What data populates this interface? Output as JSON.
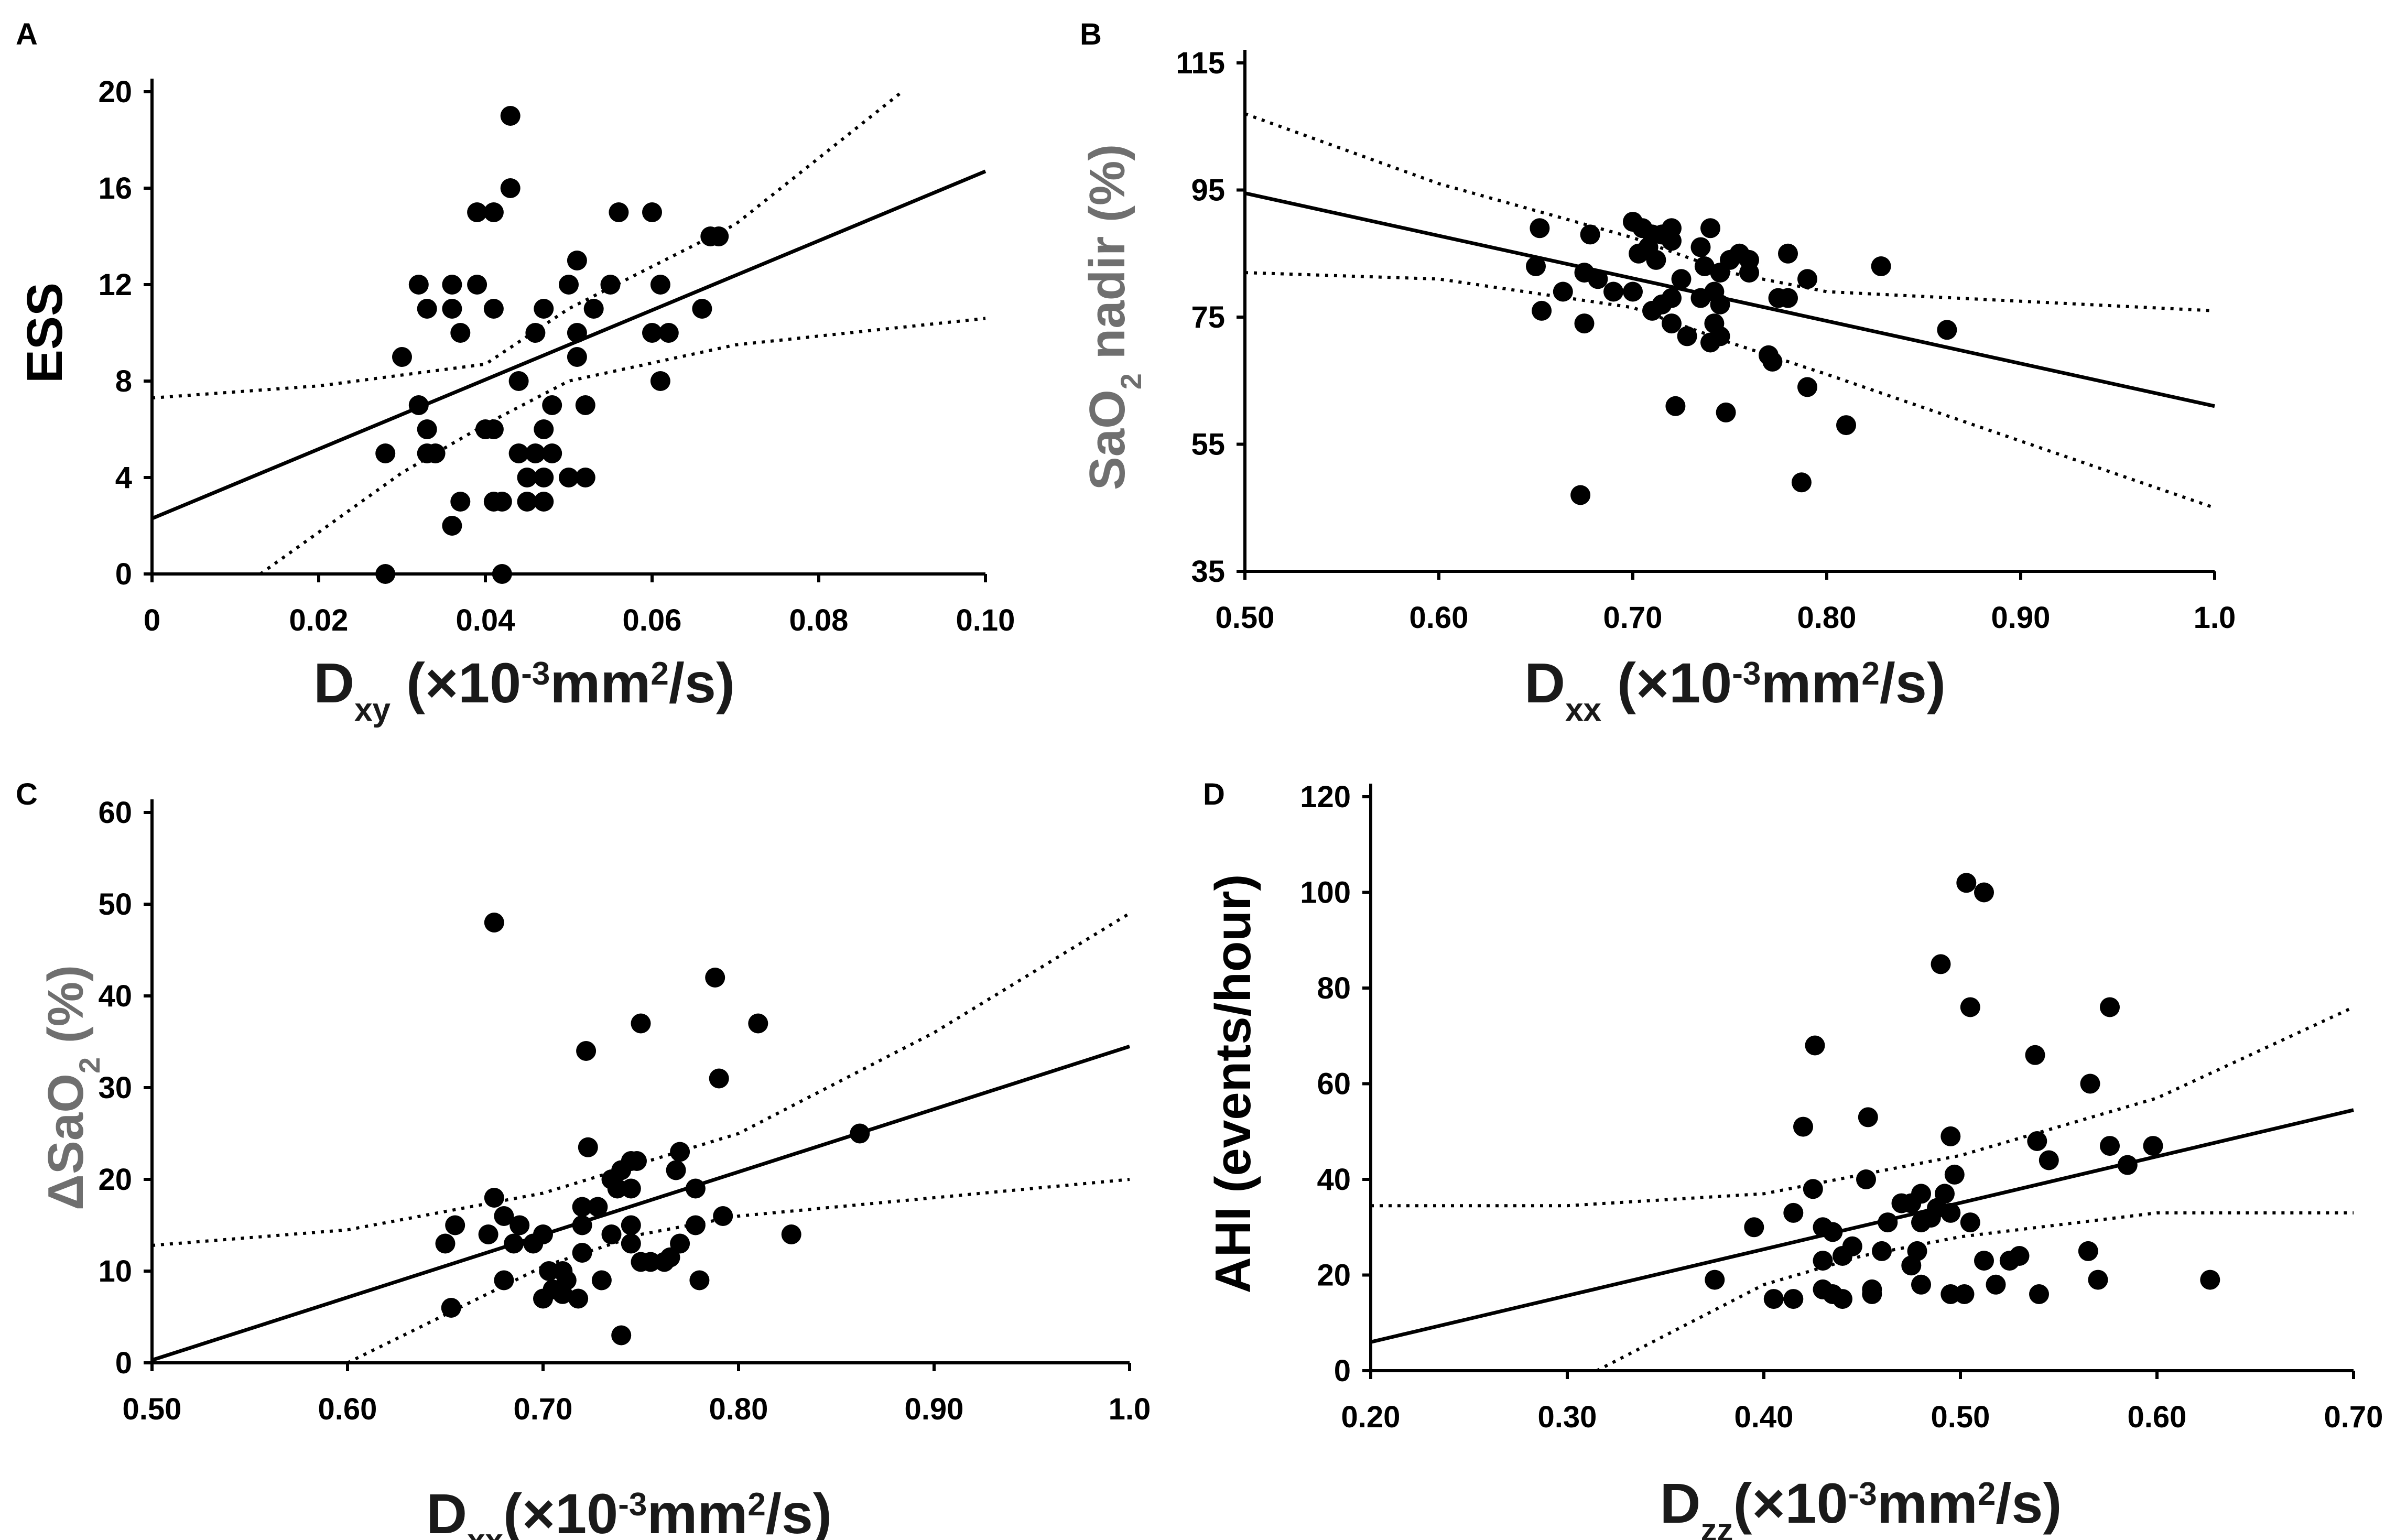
{
  "chart_data": [
    {
      "panel": "A",
      "type": "scatter",
      "ylabel": "ESS",
      "xlabel": {
        "base": "D",
        "sub": "xy",
        "rest": " (×10",
        "exp": "-3",
        "unit": "mm",
        "unitExp": "2",
        "tail": "/s)"
      },
      "xlim": [
        0,
        0.1
      ],
      "ylim": [
        0,
        20
      ],
      "xticks": [
        0,
        0.02,
        0.04,
        0.06,
        0.08,
        0.1
      ],
      "xtickLabels": [
        "0",
        "0.02",
        "0.04",
        "0.06",
        "0.08",
        "0.10"
      ],
      "yticks": [
        0,
        4,
        8,
        12,
        16,
        20
      ],
      "ytickLabels": [
        "0",
        "4",
        "8",
        "12",
        "16",
        "20"
      ],
      "fit": [
        [
          0,
          2.3
        ],
        [
          0.1,
          16.7
        ]
      ],
      "ci_upper": [
        [
          0,
          7.3
        ],
        [
          0.02,
          7.8
        ],
        [
          0.04,
          8.7
        ],
        [
          0.05,
          11.0
        ],
        [
          0.07,
          14.5
        ],
        [
          0.09,
          20.0
        ]
      ],
      "ci_lower": [
        [
          0.013,
          0
        ],
        [
          0.03,
          4.2
        ],
        [
          0.04,
          6.2
        ],
        [
          0.05,
          8.0
        ],
        [
          0.07,
          9.5
        ],
        [
          0.1,
          10.6
        ]
      ],
      "points": [
        [
          0.043,
          19
        ],
        [
          0.043,
          16
        ],
        [
          0.039,
          15
        ],
        [
          0.041,
          15
        ],
        [
          0.056,
          15
        ],
        [
          0.06,
          15
        ],
        [
          0.051,
          13
        ],
        [
          0.067,
          14
        ],
        [
          0.068,
          14
        ],
        [
          0.032,
          12
        ],
        [
          0.036,
          12
        ],
        [
          0.039,
          12
        ],
        [
          0.05,
          12
        ],
        [
          0.055,
          12
        ],
        [
          0.061,
          12
        ],
        [
          0.033,
          11
        ],
        [
          0.036,
          11
        ],
        [
          0.041,
          11
        ],
        [
          0.047,
          11
        ],
        [
          0.053,
          11
        ],
        [
          0.066,
          11
        ],
        [
          0.037,
          10
        ],
        [
          0.046,
          10
        ],
        [
          0.051,
          10
        ],
        [
          0.06,
          10
        ],
        [
          0.062,
          10
        ],
        [
          0.03,
          9
        ],
        [
          0.051,
          9
        ],
        [
          0.044,
          8
        ],
        [
          0.061,
          8
        ],
        [
          0.032,
          7
        ],
        [
          0.048,
          7
        ],
        [
          0.052,
          7
        ],
        [
          0.033,
          6
        ],
        [
          0.04,
          6
        ],
        [
          0.041,
          6
        ],
        [
          0.047,
          6
        ],
        [
          0.028,
          5
        ],
        [
          0.033,
          5
        ],
        [
          0.034,
          5
        ],
        [
          0.044,
          5
        ],
        [
          0.046,
          5
        ],
        [
          0.048,
          5
        ],
        [
          0.045,
          4
        ],
        [
          0.047,
          4
        ],
        [
          0.05,
          4
        ],
        [
          0.052,
          4
        ],
        [
          0.037,
          3
        ],
        [
          0.041,
          3
        ],
        [
          0.042,
          3
        ],
        [
          0.045,
          3
        ],
        [
          0.047,
          3
        ],
        [
          0.036,
          2
        ],
        [
          0.028,
          0
        ],
        [
          0.042,
          0
        ]
      ]
    },
    {
      "panel": "B",
      "type": "scatter",
      "ylabel": {
        "base": "SaO",
        "sub": "2",
        "tail": " nadir (%)"
      },
      "xlabel": {
        "base": "D",
        "sub": "xx",
        "rest": " (×10",
        "exp": "-3",
        "unit": "mm",
        "unitExp": "2",
        "tail": "/s)"
      },
      "xlim": [
        0.5,
        1.0
      ],
      "ylim": [
        35,
        115
      ],
      "xticks": [
        0.5,
        0.6,
        0.7,
        0.8,
        0.9,
        1.0
      ],
      "xtickLabels": [
        "0.50",
        "0.60",
        "0.70",
        "0.80",
        "0.90",
        "1.0"
      ],
      "yticks": [
        35,
        55,
        75,
        95,
        115
      ],
      "ytickLabels": [
        "35",
        "55",
        "75",
        "95",
        "115"
      ],
      "fit": [
        [
          0.5,
          94.5
        ],
        [
          1.0,
          61.0
        ]
      ],
      "ci_upper": [
        [
          0.5,
          107
        ],
        [
          0.6,
          96
        ],
        [
          0.7,
          87.5
        ],
        [
          0.75,
          82
        ],
        [
          0.8,
          79
        ],
        [
          1.0,
          76
        ]
      ],
      "ci_lower": [
        [
          0.5,
          82
        ],
        [
          0.6,
          81
        ],
        [
          0.7,
          76.5
        ],
        [
          0.75,
          71
        ],
        [
          0.8,
          66
        ],
        [
          1.0,
          45
        ]
      ],
      "points": [
        [
          0.652,
          89
        ],
        [
          0.7,
          90
        ],
        [
          0.705,
          89
        ],
        [
          0.71,
          88
        ],
        [
          0.715,
          88
        ],
        [
          0.72,
          89
        ],
        [
          0.74,
          89
        ],
        [
          0.678,
          88
        ],
        [
          0.708,
          86
        ],
        [
          0.72,
          87
        ],
        [
          0.735,
          86
        ],
        [
          0.703,
          85
        ],
        [
          0.712,
          84
        ],
        [
          0.75,
          84
        ],
        [
          0.755,
          85
        ],
        [
          0.76,
          84
        ],
        [
          0.78,
          85
        ],
        [
          0.65,
          83
        ],
        [
          0.737,
          83
        ],
        [
          0.745,
          82
        ],
        [
          0.76,
          82
        ],
        [
          0.828,
          83
        ],
        [
          0.675,
          82
        ],
        [
          0.682,
          81
        ],
        [
          0.725,
          81
        ],
        [
          0.79,
          81
        ],
        [
          0.664,
          79
        ],
        [
          0.69,
          79
        ],
        [
          0.7,
          79
        ],
        [
          0.742,
          79
        ],
        [
          0.775,
          78
        ],
        [
          0.78,
          78
        ],
        [
          0.715,
          77
        ],
        [
          0.72,
          78
        ],
        [
          0.735,
          78
        ],
        [
          0.745,
          77
        ],
        [
          0.653,
          76
        ],
        [
          0.71,
          76
        ],
        [
          0.675,
          74
        ],
        [
          0.72,
          74
        ],
        [
          0.742,
          74
        ],
        [
          0.728,
          72
        ],
        [
          0.74,
          71
        ],
        [
          0.745,
          72
        ],
        [
          0.862,
          73
        ],
        [
          0.77,
          69
        ],
        [
          0.772,
          68
        ],
        [
          0.722,
          61
        ],
        [
          0.748,
          60
        ],
        [
          0.81,
          58
        ],
        [
          0.79,
          64
        ],
        [
          0.787,
          49
        ],
        [
          0.673,
          47
        ]
      ]
    },
    {
      "panel": "C",
      "type": "scatter",
      "ylabel": {
        "base": "ΔSaO",
        "sub": "2",
        "tail": " (%)"
      },
      "xlabel": {
        "base": "D",
        "sub": "xx",
        "rest": "(×10",
        "exp": "-3",
        "unit": "mm",
        "unitExp": "2",
        "tail": "/s)"
      },
      "xlim": [
        0.5,
        1.0
      ],
      "ylim": [
        0,
        60
      ],
      "xticks": [
        0.5,
        0.6,
        0.7,
        0.8,
        0.9,
        1.0
      ],
      "xtickLabels": [
        "0.50",
        "0.60",
        "0.70",
        "0.80",
        "0.90",
        "1.0"
      ],
      "yticks": [
        0,
        10,
        20,
        30,
        40,
        50,
        60
      ],
      "ytickLabels": [
        "0",
        "10",
        "20",
        "30",
        "40",
        "50",
        "60"
      ],
      "fit": [
        [
          0.5,
          0.3
        ],
        [
          1.0,
          34.5
        ]
      ],
      "ci_upper": [
        [
          0.5,
          12.8
        ],
        [
          0.6,
          14.5
        ],
        [
          0.7,
          18.5
        ],
        [
          0.8,
          25
        ],
        [
          0.9,
          36
        ],
        [
          1.0,
          49
        ]
      ],
      "ci_lower": [
        [
          0.6,
          0
        ],
        [
          0.7,
          10.5
        ],
        [
          0.75,
          14
        ],
        [
          0.8,
          16
        ],
        [
          0.9,
          18
        ],
        [
          1.0,
          20
        ]
      ],
      "points": [
        [
          0.675,
          48
        ],
        [
          0.788,
          42
        ],
        [
          0.75,
          37
        ],
        [
          0.81,
          37
        ],
        [
          0.722,
          34
        ],
        [
          0.79,
          31
        ],
        [
          0.862,
          25
        ],
        [
          0.723,
          23.5
        ],
        [
          0.77,
          23
        ],
        [
          0.745,
          22
        ],
        [
          0.748,
          22
        ],
        [
          0.74,
          21
        ],
        [
          0.768,
          21
        ],
        [
          0.735,
          20
        ],
        [
          0.738,
          19
        ],
        [
          0.745,
          19
        ],
        [
          0.778,
          19
        ],
        [
          0.675,
          18
        ],
        [
          0.72,
          17
        ],
        [
          0.728,
          17
        ],
        [
          0.68,
          16
        ],
        [
          0.688,
          15
        ],
        [
          0.72,
          15
        ],
        [
          0.745,
          15
        ],
        [
          0.778,
          15
        ],
        [
          0.792,
          16
        ],
        [
          0.655,
          15
        ],
        [
          0.672,
          14
        ],
        [
          0.7,
          14
        ],
        [
          0.735,
          14
        ],
        [
          0.827,
          14
        ],
        [
          0.65,
          13
        ],
        [
          0.685,
          13
        ],
        [
          0.695,
          13
        ],
        [
          0.745,
          13
        ],
        [
          0.77,
          13
        ],
        [
          0.72,
          12
        ],
        [
          0.755,
          11
        ],
        [
          0.762,
          11
        ],
        [
          0.765,
          11.5
        ],
        [
          0.75,
          11
        ],
        [
          0.703,
          10
        ],
        [
          0.71,
          10
        ],
        [
          0.712,
          9
        ],
        [
          0.73,
          9
        ],
        [
          0.78,
          9
        ],
        [
          0.68,
          9
        ],
        [
          0.705,
          8
        ],
        [
          0.71,
          7.5
        ],
        [
          0.718,
          7
        ],
        [
          0.7,
          7
        ],
        [
          0.653,
          6
        ],
        [
          0.74,
          3
        ]
      ]
    },
    {
      "panel": "D",
      "type": "scatter",
      "ylabel": "AHI (events/hour)",
      "xlabel": {
        "base": "D",
        "sub": "zz",
        "rest": "(×10",
        "exp": "-3",
        "unit": "mm",
        "unitExp": "2",
        "tail": "/s)"
      },
      "xlim": [
        0.2,
        0.7
      ],
      "ylim": [
        0,
        120
      ],
      "xticks": [
        0.2,
        0.3,
        0.4,
        0.5,
        0.6,
        0.7
      ],
      "xtickLabels": [
        "0.20",
        "0.30",
        "0.40",
        "0.50",
        "0.60",
        "0.70"
      ],
      "yticks": [
        0,
        20,
        40,
        60,
        80,
        100,
        120
      ],
      "ytickLabels": [
        "0",
        "20",
        "40",
        "60",
        "80",
        "100",
        "120"
      ],
      "fit": [
        [
          0.2,
          6
        ],
        [
          0.7,
          54.5
        ]
      ],
      "ci_upper": [
        [
          0.2,
          34.5
        ],
        [
          0.3,
          34.5
        ],
        [
          0.4,
          37
        ],
        [
          0.5,
          45
        ],
        [
          0.6,
          57
        ],
        [
          0.7,
          76
        ]
      ],
      "ci_lower": [
        [
          0.315,
          0
        ],
        [
          0.4,
          18
        ],
        [
          0.45,
          24
        ],
        [
          0.5,
          28
        ],
        [
          0.6,
          33
        ],
        [
          0.7,
          33
        ]
      ],
      "points": [
        [
          0.503,
          102
        ],
        [
          0.512,
          100
        ],
        [
          0.49,
          85
        ],
        [
          0.505,
          76
        ],
        [
          0.576,
          76
        ],
        [
          0.426,
          68
        ],
        [
          0.538,
          66
        ],
        [
          0.566,
          60
        ],
        [
          0.453,
          53
        ],
        [
          0.42,
          51
        ],
        [
          0.495,
          49
        ],
        [
          0.539,
          48
        ],
        [
          0.576,
          47
        ],
        [
          0.598,
          47
        ],
        [
          0.545,
          44
        ],
        [
          0.585,
          43
        ],
        [
          0.497,
          41
        ],
        [
          0.425,
          38
        ],
        [
          0.452,
          40
        ],
        [
          0.47,
          35
        ],
        [
          0.48,
          37
        ],
        [
          0.492,
          37
        ],
        [
          0.475,
          35
        ],
        [
          0.488,
          34
        ],
        [
          0.495,
          33
        ],
        [
          0.415,
          33
        ],
        [
          0.395,
          30
        ],
        [
          0.43,
          30
        ],
        [
          0.435,
          29
        ],
        [
          0.48,
          31
        ],
        [
          0.505,
          31
        ],
        [
          0.445,
          26
        ],
        [
          0.46,
          25
        ],
        [
          0.478,
          25
        ],
        [
          0.525,
          23
        ],
        [
          0.53,
          24
        ],
        [
          0.512,
          23
        ],
        [
          0.565,
          25
        ],
        [
          0.43,
          23
        ],
        [
          0.44,
          24
        ],
        [
          0.475,
          22
        ],
        [
          0.463,
          31
        ],
        [
          0.485,
          32
        ],
        [
          0.375,
          19
        ],
        [
          0.405,
          15
        ],
        [
          0.415,
          15
        ],
        [
          0.435,
          16
        ],
        [
          0.43,
          17
        ],
        [
          0.455,
          17
        ],
        [
          0.48,
          18
        ],
        [
          0.495,
          16
        ],
        [
          0.502,
          16
        ],
        [
          0.518,
          18
        ],
        [
          0.54,
          16
        ],
        [
          0.57,
          19
        ],
        [
          0.627,
          19
        ],
        [
          0.44,
          15
        ],
        [
          0.455,
          16
        ]
      ]
    }
  ]
}
